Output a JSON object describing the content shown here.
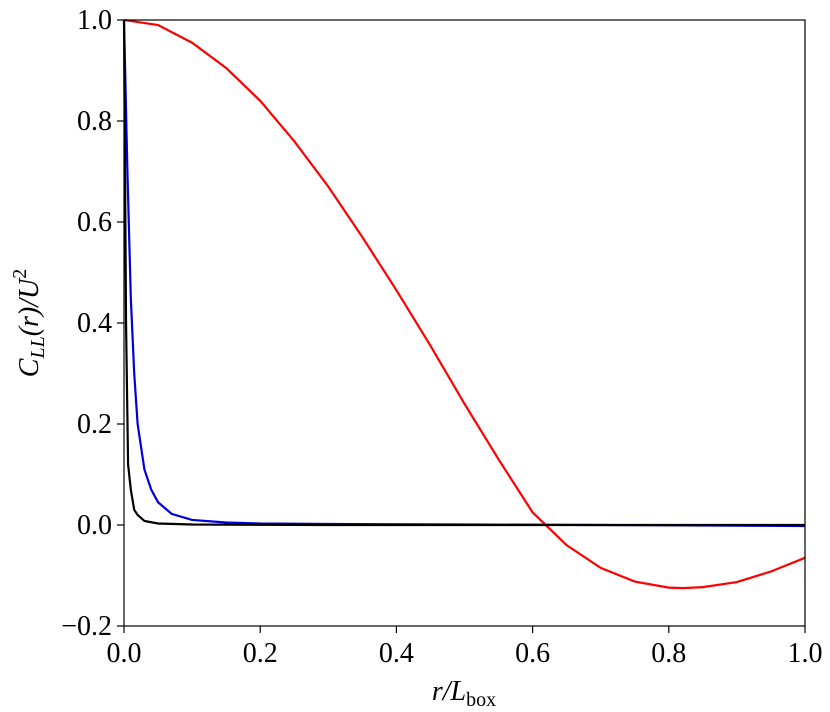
{
  "chart_data": {
    "type": "line",
    "xlabel": [
      "r/L",
      "box"
    ],
    "ylabel": [
      "C",
      "LL",
      "(r)/U",
      "2"
    ],
    "xlim": [
      0,
      1
    ],
    "ylim": [
      -0.2,
      1
    ],
    "xticks": [
      {
        "value": 0,
        "label": "0.0"
      },
      {
        "value": 0.2,
        "label": "0.2"
      },
      {
        "value": 0.4,
        "label": "0.4"
      },
      {
        "value": 0.6,
        "label": "0.6"
      },
      {
        "value": 0.8,
        "label": "0.8"
      },
      {
        "value": 1,
        "label": "1.0"
      }
    ],
    "yticks": [
      {
        "value": -0.2,
        "label": "−0.2"
      },
      {
        "value": 0,
        "label": "0.0"
      },
      {
        "value": 0.2,
        "label": "0.2"
      },
      {
        "value": 0.4,
        "label": "0.4"
      },
      {
        "value": 0.6,
        "label": "0.6"
      },
      {
        "value": 0.8,
        "label": "0.8"
      },
      {
        "value": 1,
        "label": "1.0"
      }
    ],
    "series": [
      {
        "color": "#ff0000",
        "x": [
          0,
          0.05,
          0.1,
          0.15,
          0.2,
          0.25,
          0.3,
          0.35,
          0.4,
          0.45,
          0.5,
          0.55,
          0.6,
          0.65,
          0.7,
          0.75,
          0.8,
          0.82,
          0.85,
          0.9,
          0.95,
          1.0
        ],
        "values": [
          1,
          0.99,
          0.955,
          0.905,
          0.84,
          0.76,
          0.67,
          0.57,
          0.465,
          0.355,
          0.24,
          0.13,
          0.025,
          -0.04,
          -0.085,
          -0.112,
          -0.124,
          -0.125,
          -0.123,
          -0.113,
          -0.092,
          -0.065
        ]
      },
      {
        "color": "#0000dd",
        "x": [
          0,
          0.005,
          0.01,
          0.015,
          0.02,
          0.03,
          0.04,
          0.05,
          0.07,
          0.1,
          0.15,
          0.2,
          0.3,
          0.5,
          0.7,
          1.0
        ],
        "values": [
          1,
          0.7,
          0.45,
          0.3,
          0.2,
          0.11,
          0.07,
          0.045,
          0.022,
          0.01,
          0.005,
          0.003,
          0.002,
          0.001,
          0,
          -0.002
        ]
      },
      {
        "color": "#000000",
        "x": [
          0,
          0.003,
          0.006,
          0.01,
          0.015,
          0.02,
          0.03,
          0.05,
          0.1,
          0.3,
          1.0
        ],
        "values": [
          1,
          0.4,
          0.12,
          0.07,
          0.03,
          0.02,
          0.008,
          0.003,
          0.001,
          0,
          0
        ]
      }
    ]
  }
}
